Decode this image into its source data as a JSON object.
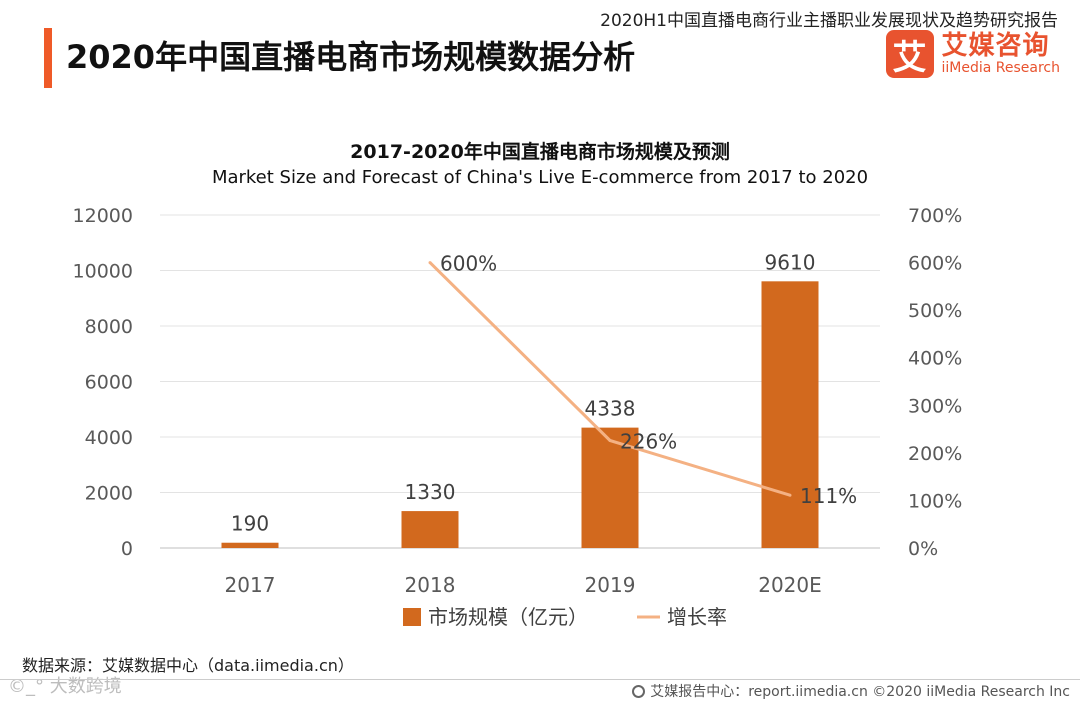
{
  "header": {
    "report_title": "2020H1中国直播电商行业主播职业发展现状及趋势研究报告",
    "page_title": "2020年中国直播电商市场规模数据分析",
    "logo_mark": "艾",
    "logo_cn": "艾媒咨询",
    "logo_en": "iiMedia Research"
  },
  "colors": {
    "accent": "#ef5a28",
    "bar": "#d2691e",
    "line": "#f4b183"
  },
  "chart_data": {
    "type": "bar",
    "title": "2017-2020年中国直播电商市场规模及预测",
    "subtitle": "Market Size and Forecast of China's Live E-commerce from 2017 to 2020",
    "categories": [
      "2017",
      "2018",
      "2019",
      "2020E"
    ],
    "series": [
      {
        "name": "市场规模（亿元）",
        "type": "bar",
        "axis": "left",
        "values": [
          190,
          1330,
          4338,
          9610
        ],
        "labels": [
          "190",
          "1330",
          "4338",
          "9610"
        ]
      },
      {
        "name": "增长率",
        "type": "line",
        "axis": "right",
        "values": [
          null,
          600,
          226,
          111
        ],
        "labels": [
          "",
          "600%",
          "226%",
          "111%"
        ]
      }
    ],
    "ylim": [
      0,
      12000
    ],
    "yticks": [
      "0",
      "2000",
      "4000",
      "6000",
      "8000",
      "10000",
      "12000"
    ],
    "y2lim": [
      0,
      700
    ],
    "y2ticks": [
      "0%",
      "100%",
      "200%",
      "300%",
      "400%",
      "500%",
      "600%",
      "700%"
    ],
    "grid": true,
    "legend": "bottom"
  },
  "footer": {
    "source": "数据来源：艾媒数据中心（data.iimedia.cn）",
    "watermark": "©_° 大数跨境",
    "copyright": "艾媒报告中心：report.iimedia.cn   ©2020  iiMedia Research  Inc"
  }
}
